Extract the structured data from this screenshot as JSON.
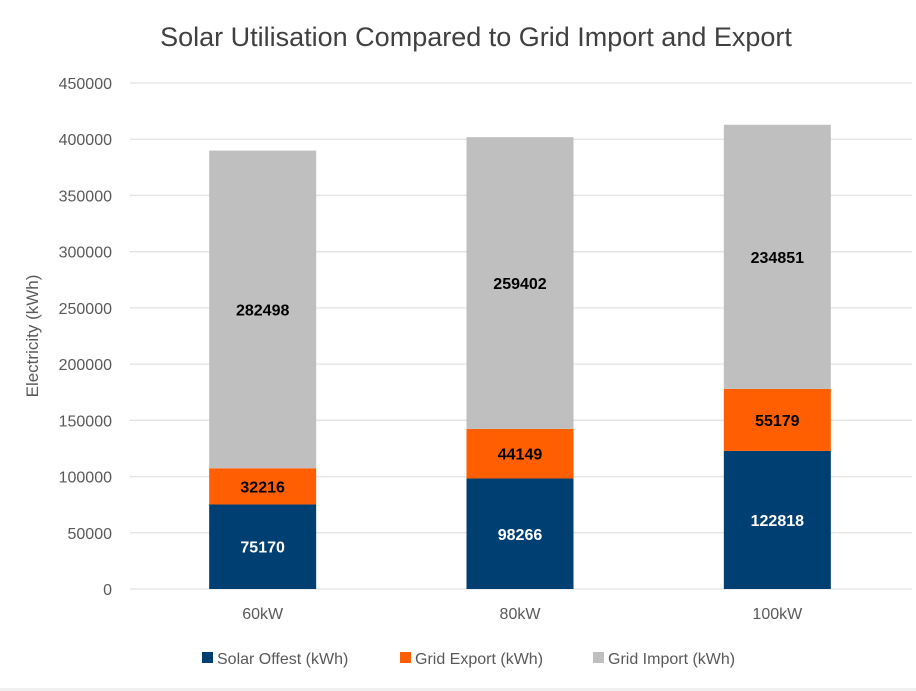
{
  "chart_data": {
    "type": "bar",
    "stacked": true,
    "title": "Solar Utilisation Compared to Grid Import and Export",
    "xlabel": "",
    "ylabel": "Electricity (kWh)",
    "ylim": [
      0,
      450000
    ],
    "yticks": [
      0,
      50000,
      100000,
      150000,
      200000,
      250000,
      300000,
      350000,
      400000,
      450000
    ],
    "ytick_labels": [
      "0",
      "50000",
      "100000",
      "150000",
      "200000",
      "250000",
      "300000",
      "350000",
      "400000",
      "450000"
    ],
    "grid": true,
    "legend_position": "bottom",
    "categories": [
      "60kW",
      "80kW",
      "100kW"
    ],
    "series": [
      {
        "name": "Solar Offest (kWh)",
        "color": "#003f72",
        "label_color": "#ffffff",
        "values": [
          75170,
          98266,
          122818
        ]
      },
      {
        "name": "Grid Export (kWh)",
        "color": "#ff5f00",
        "label_color": "#000000",
        "values": [
          32216,
          44149,
          55179
        ]
      },
      {
        "name": "Grid Import (kWh)",
        "color": "#bfbfbf",
        "label_color": "#000000",
        "values": [
          282498,
          259402,
          234851
        ]
      }
    ]
  }
}
